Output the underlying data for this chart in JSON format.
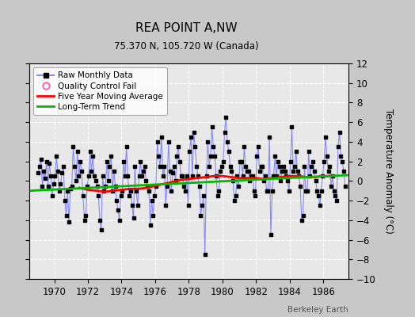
{
  "title": "REA POINT A,NW",
  "subtitle": "75.370 N, 105.720 W (Canada)",
  "ylabel": "Temperature Anomaly (°C)",
  "watermark": "Berkeley Earth",
  "ylim": [
    -10,
    12
  ],
  "yticks": [
    -10,
    -8,
    -6,
    -4,
    -2,
    0,
    2,
    4,
    6,
    8,
    10,
    12
  ],
  "xlim": [
    1968.5,
    1987.5
  ],
  "xticks": [
    1970,
    1972,
    1974,
    1976,
    1978,
    1980,
    1982,
    1984,
    1986
  ],
  "fig_bg_color": "#c8c8c8",
  "plot_bg_color": "#e8e8e8",
  "raw_line_color": "#8888ff",
  "raw_marker_color": "#000000",
  "ma_color": "#ff0000",
  "trend_color": "#00bb00",
  "qc_color": "#ff69b4",
  "grid_color": "#ffffff",
  "raw_data_x": [
    1969.042,
    1969.125,
    1969.208,
    1969.292,
    1969.375,
    1969.458,
    1969.542,
    1969.625,
    1969.708,
    1969.792,
    1969.875,
    1969.958,
    1970.042,
    1970.125,
    1970.208,
    1970.292,
    1970.375,
    1970.458,
    1970.542,
    1970.625,
    1970.708,
    1970.792,
    1970.875,
    1970.958,
    1971.042,
    1971.125,
    1971.208,
    1971.292,
    1971.375,
    1971.458,
    1971.542,
    1971.625,
    1971.708,
    1971.792,
    1971.875,
    1971.958,
    1972.042,
    1972.125,
    1972.208,
    1972.292,
    1972.375,
    1972.458,
    1972.542,
    1972.625,
    1972.708,
    1972.792,
    1972.875,
    1972.958,
    1973.042,
    1973.125,
    1973.208,
    1973.292,
    1973.375,
    1973.458,
    1973.542,
    1973.625,
    1973.708,
    1973.792,
    1973.875,
    1973.958,
    1974.042,
    1974.125,
    1974.208,
    1974.292,
    1974.375,
    1974.458,
    1974.542,
    1974.625,
    1974.708,
    1974.792,
    1974.875,
    1974.958,
    1975.042,
    1975.125,
    1975.208,
    1975.292,
    1975.375,
    1975.458,
    1975.542,
    1975.625,
    1975.708,
    1975.792,
    1975.875,
    1975.958,
    1976.042,
    1976.125,
    1976.208,
    1976.292,
    1976.375,
    1976.458,
    1976.542,
    1976.625,
    1976.708,
    1976.792,
    1976.875,
    1976.958,
    1977.042,
    1977.125,
    1977.208,
    1977.292,
    1977.375,
    1977.458,
    1977.542,
    1977.625,
    1977.708,
    1977.792,
    1977.875,
    1977.958,
    1978.042,
    1978.125,
    1978.208,
    1978.292,
    1978.375,
    1978.458,
    1978.542,
    1978.625,
    1978.708,
    1978.792,
    1978.875,
    1978.958,
    1979.042,
    1979.125,
    1979.208,
    1979.292,
    1979.375,
    1979.458,
    1979.542,
    1979.625,
    1979.708,
    1979.792,
    1979.875,
    1979.958,
    1980.042,
    1980.125,
    1980.208,
    1980.292,
    1980.375,
    1980.458,
    1980.542,
    1980.625,
    1980.708,
    1980.792,
    1980.875,
    1980.958,
    1981.042,
    1981.125,
    1981.208,
    1981.292,
    1981.375,
    1981.458,
    1981.542,
    1981.625,
    1981.708,
    1981.792,
    1981.875,
    1981.958,
    1982.042,
    1982.125,
    1982.208,
    1982.292,
    1982.375,
    1982.458,
    1982.542,
    1982.625,
    1982.708,
    1982.792,
    1982.875,
    1982.958,
    1983.042,
    1983.125,
    1983.208,
    1983.292,
    1983.375,
    1983.458,
    1983.542,
    1983.625,
    1983.708,
    1983.792,
    1983.875,
    1983.958,
    1984.042,
    1984.125,
    1984.208,
    1984.292,
    1984.375,
    1984.458,
    1984.542,
    1984.625,
    1984.708,
    1984.792,
    1984.875,
    1984.958,
    1985.042,
    1985.125,
    1985.208,
    1985.292,
    1985.375,
    1985.458,
    1985.542,
    1985.625,
    1985.708,
    1985.792,
    1985.875,
    1985.958,
    1986.042,
    1986.125,
    1986.208,
    1986.292,
    1986.375,
    1986.458,
    1986.542,
    1986.625,
    1986.708,
    1986.792,
    1986.875,
    1986.958,
    1987.042,
    1987.125,
    1987.208,
    1987.292
  ],
  "raw_data_y": [
    0.8,
    1.5,
    2.2,
    -0.5,
    1.0,
    0.3,
    2.0,
    -0.5,
    1.8,
    0.5,
    -1.5,
    -0.3,
    0.5,
    2.5,
    1.0,
    -1.0,
    -0.3,
    0.8,
    1.5,
    -2.0,
    -3.5,
    -1.0,
    -4.2,
    -0.8,
    -0.5,
    3.5,
    1.5,
    0.0,
    3.0,
    0.5,
    2.0,
    1.0,
    -1.5,
    -4.0,
    -3.5,
    -0.5,
    0.5,
    3.0,
    1.0,
    2.5,
    0.5,
    0.0,
    -0.5,
    -1.5,
    -4.0,
    -5.0,
    0.5,
    -1.0,
    -0.5,
    2.0,
    0.0,
    1.5,
    2.5,
    -1.0,
    1.0,
    -0.5,
    -2.0,
    -3.0,
    -4.0,
    -1.5,
    -1.0,
    2.0,
    0.5,
    3.5,
    0.5,
    -1.5,
    -1.0,
    -2.5,
    -3.8,
    1.5,
    -1.0,
    -2.5,
    0.5,
    2.0,
    0.5,
    1.0,
    1.5,
    0.0,
    -0.5,
    -1.0,
    -4.5,
    -2.0,
    -3.5,
    -1.5,
    -0.5,
    4.0,
    2.5,
    1.5,
    4.5,
    0.5,
    1.5,
    -2.5,
    -0.5,
    4.0,
    1.0,
    -1.0,
    0.8,
    1.5,
    0.0,
    2.5,
    3.5,
    2.0,
    0.5,
    0.5,
    -0.5,
    -1.0,
    0.5,
    -2.5,
    3.0,
    4.5,
    0.5,
    5.0,
    3.5,
    1.5,
    0.5,
    -0.5,
    -3.5,
    -2.5,
    -1.5,
    -7.5,
    0.5,
    4.0,
    1.5,
    2.5,
    5.5,
    3.5,
    2.5,
    0.5,
    -1.5,
    -1.0,
    1.0,
    1.5,
    2.0,
    5.0,
    6.5,
    4.0,
    3.0,
    1.5,
    1.0,
    0.0,
    -2.0,
    -1.5,
    0.5,
    -0.5,
    2.0,
    2.0,
    0.5,
    3.5,
    1.5,
    1.0,
    1.0,
    0.0,
    0.5,
    0.5,
    -1.0,
    -1.5,
    2.5,
    3.5,
    1.0,
    1.5,
    1.5,
    0.0,
    0.5,
    -1.0,
    -1.0,
    4.5,
    -5.5,
    -1.0,
    0.5,
    2.5,
    0.5,
    2.0,
    1.5,
    0.0,
    1.0,
    1.5,
    1.0,
    0.5,
    0.0,
    -1.0,
    2.0,
    5.5,
    1.0,
    1.5,
    3.0,
    1.0,
    0.5,
    -0.5,
    -4.0,
    -3.5,
    1.5,
    -1.0,
    -1.0,
    3.0,
    0.5,
    1.5,
    2.0,
    1.0,
    0.0,
    -1.0,
    -1.5,
    -2.5,
    -1.0,
    0.5,
    2.0,
    4.5,
    2.5,
    1.0,
    1.5,
    -0.5,
    0.5,
    -1.0,
    -1.5,
    -2.0,
    3.5,
    5.0,
    2.5,
    2.0,
    1.0,
    -0.5
  ],
  "trend_x": [
    1968.5,
    1987.5
  ],
  "trend_y": [
    -1.0,
    0.6
  ],
  "ma_x": [
    1971.5,
    1972.0,
    1972.5,
    1973.0,
    1973.5,
    1974.0,
    1974.5,
    1975.0,
    1975.5,
    1976.0,
    1976.5,
    1977.0,
    1977.5,
    1978.0,
    1978.5,
    1979.0,
    1979.5,
    1980.0,
    1980.5,
    1981.0,
    1981.5,
    1982.0,
    1982.5,
    1983.0,
    1983.5,
    1984.0,
    1984.5,
    1985.0,
    1985.5,
    1986.0,
    1986.5
  ],
  "ma_y": [
    -0.7,
    -0.9,
    -1.0,
    -1.1,
    -1.0,
    -0.9,
    -0.8,
    -0.8,
    -0.7,
    -0.5,
    -0.3,
    -0.1,
    0.1,
    0.2,
    0.3,
    0.4,
    0.5,
    0.5,
    0.4,
    0.3,
    0.3,
    0.3,
    0.2,
    0.3,
    0.4,
    0.5,
    0.5,
    0.4,
    0.4,
    0.5,
    0.5
  ]
}
